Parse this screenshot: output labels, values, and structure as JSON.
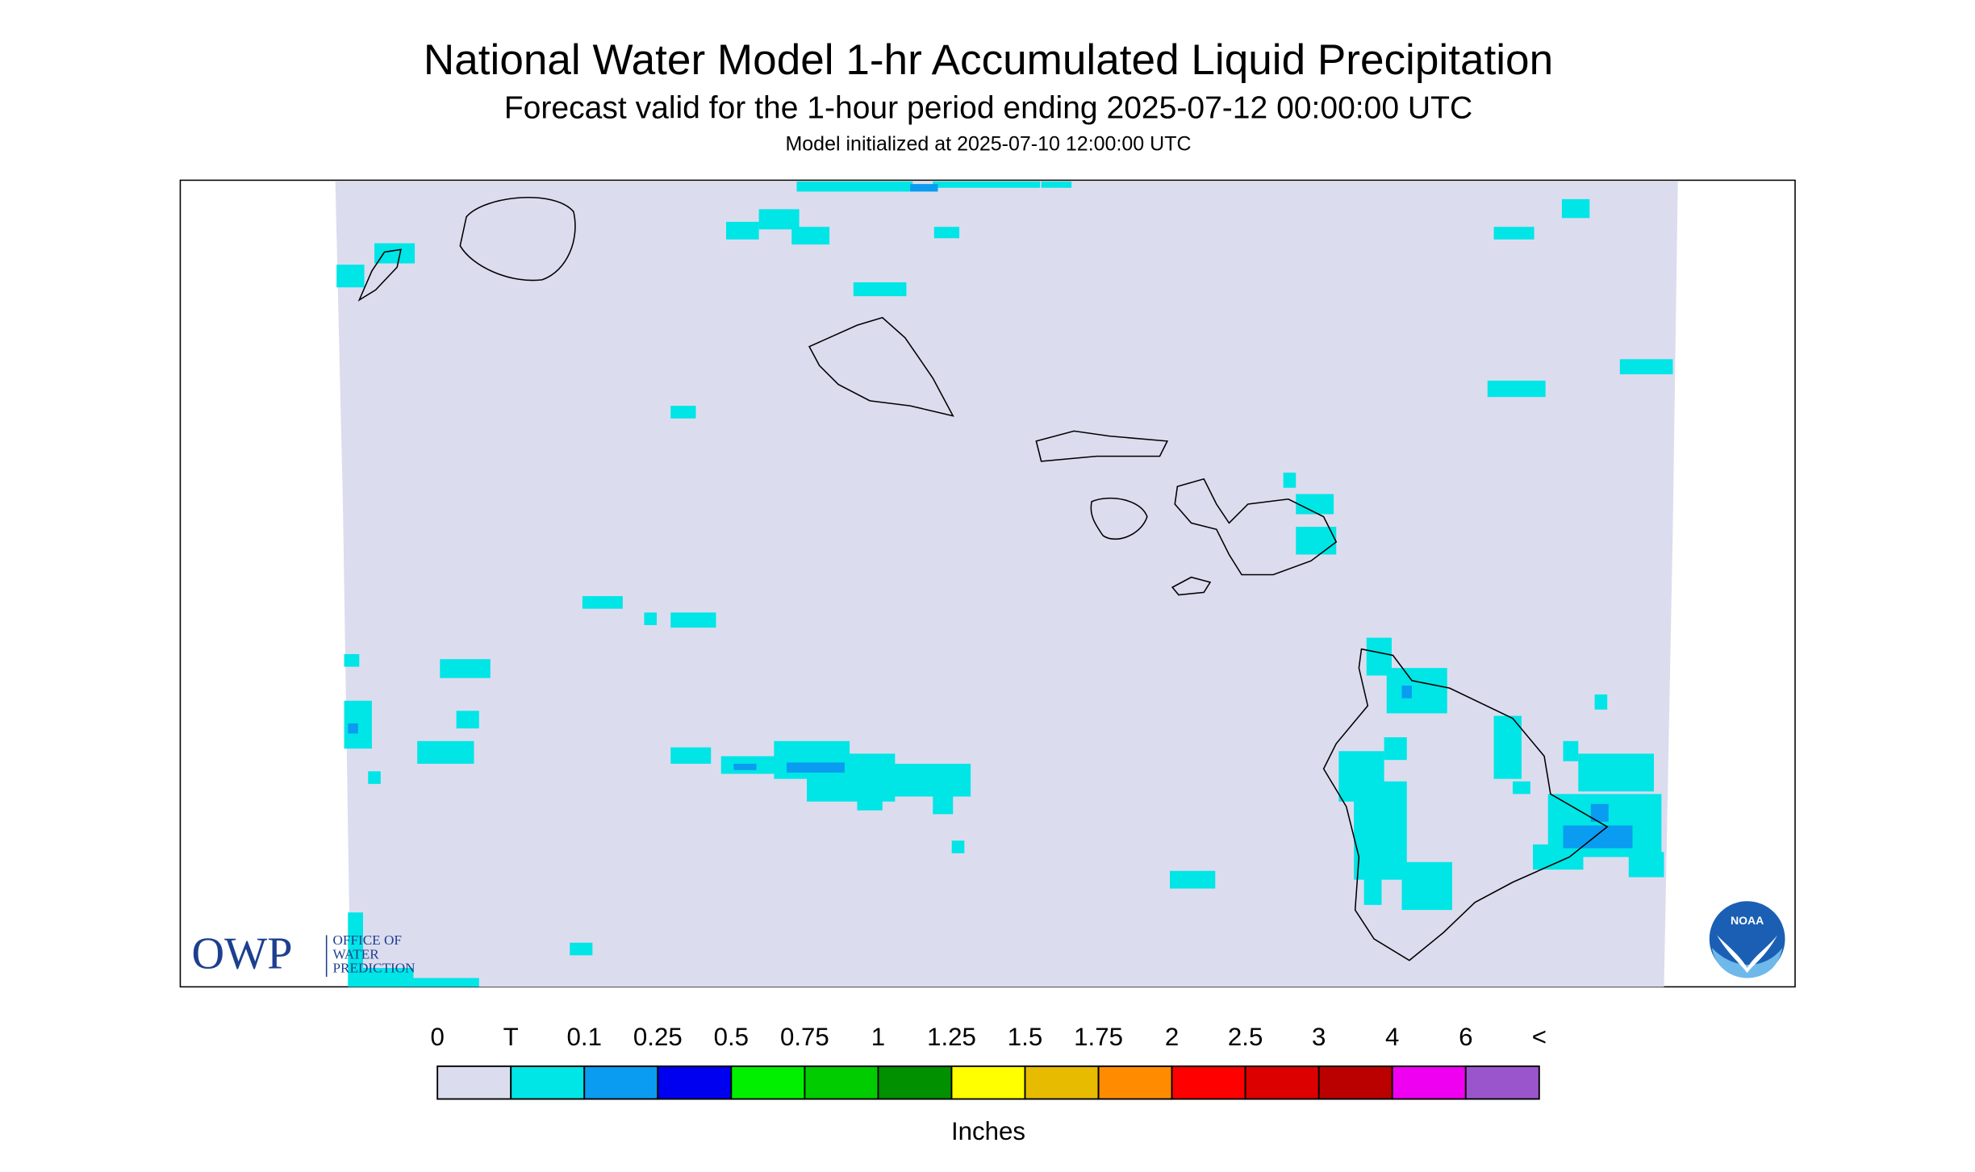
{
  "header": {
    "title": "National Water Model 1-hr Accumulated Liquid Precipitation",
    "subtitle": "Forecast valid for the 1-hour period ending 2025-07-12 00:00:00 UTC",
    "note": "Model initialized at 2025-07-10 12:00:00 UTC"
  },
  "logos": {
    "owp": "OWP",
    "owp_lines": [
      "OFFICE OF",
      "WATER",
      "PREDICTION"
    ],
    "noaa": "NOAA"
  },
  "legend": {
    "labels": [
      "0",
      "T",
      "0.1",
      "0.25",
      "0.5",
      "0.75",
      "1",
      "1.25",
      "1.5",
      "1.75",
      "2",
      "2.5",
      "3",
      "4",
      "6",
      "<"
    ],
    "colors": [
      "#dcdcef",
      "#00e5e5",
      "#0a9cf0",
      "#0000f0",
      "#00f000",
      "#00cc00",
      "#009000",
      "#ffff00",
      "#e6bb00",
      "#ff8c00",
      "#ff0000",
      "#dd0000",
      "#bb0000",
      "#f000f0",
      "#9b55cc"
    ],
    "units": "Inches"
  }
}
